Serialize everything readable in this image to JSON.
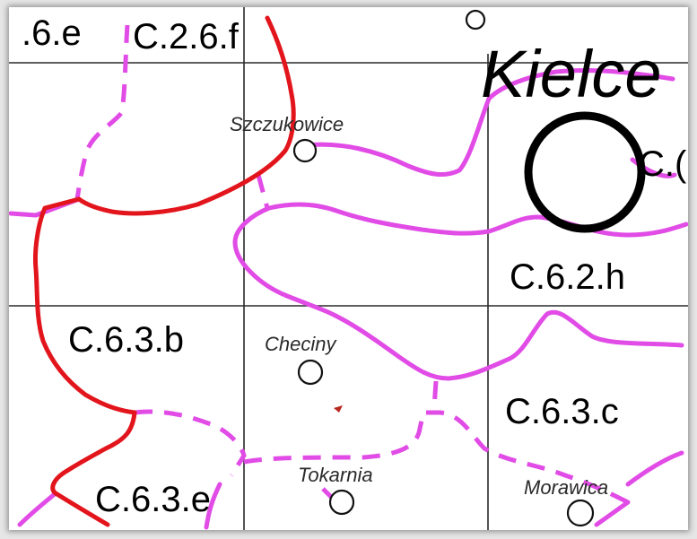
{
  "map": {
    "city": "Kielce",
    "zones": {
      "top_left": ".6.e",
      "top_center": "C.2.6.f",
      "kielce_partial": "C.(",
      "c62h": "C.6.2.h",
      "c63b": "C.6.3.b",
      "c63c": "C.6.3.c",
      "c63e": "C.6.3.e"
    },
    "places": {
      "szczukowice": "Szczukowice",
      "checiny": "Checiny",
      "tokarnia": "Tokarnia",
      "morawica": "Morawica"
    },
    "colors": {
      "boundary_red": "#e3151c",
      "route_magenta": "#e14be6",
      "grid": "#2a2a2a"
    }
  }
}
